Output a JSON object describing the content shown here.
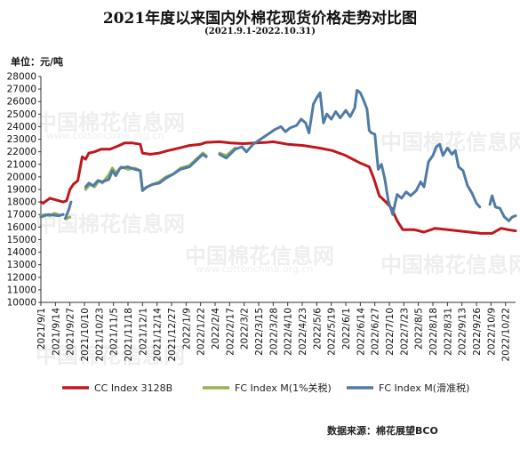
{
  "header": {
    "title": "2021年度以来国内外棉花现货价格走势对比图",
    "subtitle": "(2021.9.1-2022.10.31)",
    "unit": "单位：元/吨"
  },
  "footer": {
    "source": "数据来源：棉花展望BCO"
  },
  "watermark": {
    "text": "中国棉花信息网",
    "url": "www.cottonchina.org.cn"
  },
  "colors": {
    "cc": "#c0171c",
    "fc1": "#93b450",
    "fc2": "#4f7ba6"
  },
  "chart_data": {
    "type": "line",
    "title": "2021年度以来国内外棉花现货价格走势对比图",
    "subtitle": "(2021.9.1-2022.10.31)",
    "ylabel": "单位：元/吨",
    "ylim": [
      10000,
      28000
    ],
    "yticks": [
      "10000",
      "11000",
      "12000",
      "13000",
      "14000",
      "15000",
      "16000",
      "17000",
      "18000",
      "19000",
      "20000",
      "21000",
      "22000",
      "23000",
      "24000",
      "25000",
      "26000",
      "27000",
      "28000"
    ],
    "xlim": [
      "2021-09-01",
      "2022-10-31"
    ],
    "xticks": [
      "2021/9/1",
      "2021/9/14",
      "2021/9/27",
      "2021/10/10",
      "2021/10/23",
      "2021/11/5",
      "2021/11/18",
      "2021/12/1",
      "2021/12/14",
      "2021/12/27",
      "2022/1/9",
      "2022/1/22",
      "2022/2/4",
      "2022/2/17",
      "2022/3/2",
      "2022/3/15",
      "2022/3/28",
      "2022/4/10",
      "2022/4/23",
      "2022/5/6",
      "2022/5/19",
      "2022/6/1",
      "2022/6/14",
      "2022/6/27",
      "2022/7/10",
      "2022/7/23",
      "2022/8/5",
      "2022/8/18",
      "2022/8/31",
      "2022/9/13",
      "2022/9/26",
      "2022/10/9",
      "2022/10/22"
    ],
    "grid": false,
    "legend": "bottom",
    "series": [
      {
        "name": "CC Index 3128B",
        "color": "#c0171c",
        "points": [
          [
            "2021-09-01",
            18000
          ],
          [
            "2021-09-03",
            17900
          ],
          [
            "2021-09-06",
            18100
          ],
          [
            "2021-09-09",
            18300
          ],
          [
            "2021-09-13",
            18200
          ],
          [
            "2021-09-17",
            18100
          ],
          [
            "2021-09-21",
            18000
          ],
          [
            "2021-09-24",
            18100
          ],
          [
            "2021-09-27",
            19000
          ],
          [
            "2021-09-30",
            19400
          ],
          [
            "2021-10-04",
            19700
          ],
          [
            "2021-10-08",
            21600
          ],
          [
            "2021-10-11",
            21400
          ],
          [
            "2021-10-14",
            21900
          ],
          [
            "2021-10-19",
            22000
          ],
          [
            "2021-10-25",
            22200
          ],
          [
            "2021-11-02",
            22200
          ],
          [
            "2021-11-10",
            22500
          ],
          [
            "2021-11-15",
            22700
          ],
          [
            "2021-11-22",
            22700
          ],
          [
            "2021-11-29",
            22600
          ],
          [
            "2021-12-01",
            21900
          ],
          [
            "2021-12-08",
            21800
          ],
          [
            "2021-12-16",
            21900
          ],
          [
            "2021-12-24",
            22100
          ],
          [
            "2022-01-03",
            22300
          ],
          [
            "2022-01-12",
            22500
          ],
          [
            "2022-01-22",
            22600
          ],
          [
            "2022-01-27",
            22750
          ],
          [
            "2022-02-08",
            22800
          ],
          [
            "2022-02-18",
            22700
          ],
          [
            "2022-03-01",
            22650
          ],
          [
            "2022-03-12",
            22700
          ],
          [
            "2022-03-22",
            22750
          ],
          [
            "2022-03-28",
            22800
          ],
          [
            "2022-04-10",
            22600
          ],
          [
            "2022-04-24",
            22500
          ],
          [
            "2022-05-08",
            22300
          ],
          [
            "2022-05-20",
            22100
          ],
          [
            "2022-06-01",
            21700
          ],
          [
            "2022-06-14",
            21100
          ],
          [
            "2022-06-22",
            20800
          ],
          [
            "2022-06-26",
            19900
          ],
          [
            "2022-07-01",
            18500
          ],
          [
            "2022-07-07",
            18000
          ],
          [
            "2022-07-12",
            17500
          ],
          [
            "2022-07-17",
            16500
          ],
          [
            "2022-07-22",
            15800
          ],
          [
            "2022-08-01",
            15800
          ],
          [
            "2022-08-10",
            15600
          ],
          [
            "2022-08-20",
            15900
          ],
          [
            "2022-08-31",
            15800
          ],
          [
            "2022-09-10",
            15700
          ],
          [
            "2022-09-20",
            15600
          ],
          [
            "2022-09-30",
            15500
          ],
          [
            "2022-10-10",
            15500
          ],
          [
            "2022-10-14",
            15700
          ],
          [
            "2022-10-18",
            15900
          ],
          [
            "2022-10-24",
            15800
          ],
          [
            "2022-10-31",
            15700
          ]
        ]
      },
      {
        "name": "FC Index M(1%关税)",
        "color": "#93b450",
        "points": [
          [
            "2021-09-01",
            16900
          ],
          [
            "2021-09-05",
            17000
          ],
          [
            "2021-09-09",
            16900
          ],
          [
            "2021-09-13",
            17100
          ],
          [
            "2021-09-18",
            16950
          ],
          [
            "2021-09-21",
            17000
          ],
          null,
          [
            "2021-09-23",
            16650
          ],
          [
            "2021-09-27",
            16800
          ],
          null,
          [
            "2021-10-11",
            19000
          ],
          [
            "2021-10-15",
            19400
          ],
          [
            "2021-10-19",
            19200
          ],
          [
            "2021-10-23",
            19700
          ],
          [
            "2021-10-26",
            19500
          ],
          [
            "2021-11-01",
            20200
          ],
          [
            "2021-11-04",
            20700
          ],
          [
            "2021-11-07",
            20300
          ],
          [
            "2021-11-12",
            20800
          ],
          [
            "2021-11-18",
            20600
          ],
          [
            "2021-11-24",
            20700
          ],
          [
            "2021-11-29",
            20500
          ],
          [
            "2021-12-01",
            19000
          ],
          [
            "2021-12-05",
            19200
          ],
          [
            "2021-12-10",
            19400
          ],
          [
            "2021-12-16",
            19600
          ],
          [
            "2021-12-22",
            20000
          ],
          [
            "2021-12-28",
            20200
          ],
          [
            "2022-01-04",
            20700
          ],
          [
            "2022-01-12",
            20900
          ],
          [
            "2022-01-18",
            21400
          ],
          [
            "2022-01-24",
            21900
          ],
          [
            "2022-01-27",
            21700
          ],
          null,
          [
            "2022-02-08",
            21900
          ],
          [
            "2022-02-14",
            21700
          ],
          [
            "2022-02-22",
            22300
          ]
        ]
      },
      {
        "name": "FC Index M(滑准税)",
        "color": "#4f7ba6",
        "points": [
          [
            "2021-09-01",
            16800
          ],
          [
            "2021-09-04",
            16900
          ],
          [
            "2021-09-08",
            17000
          ],
          [
            "2021-09-12",
            16950
          ],
          [
            "2021-09-17",
            16900
          ],
          [
            "2021-09-21",
            17000
          ],
          null,
          [
            "2021-09-23",
            16700
          ],
          [
            "2021-09-26",
            17400
          ],
          [
            "2021-09-28",
            18000
          ],
          null,
          [
            "2021-10-11",
            19200
          ],
          [
            "2021-10-14",
            19500
          ],
          [
            "2021-10-18",
            19300
          ],
          [
            "2021-10-22",
            19700
          ],
          [
            "2021-10-26",
            19600
          ],
          [
            "2021-11-01",
            19800
          ],
          [
            "2021-11-04",
            20500
          ],
          [
            "2021-11-07",
            20100
          ],
          [
            "2021-11-11",
            20700
          ],
          [
            "2021-11-18",
            20800
          ],
          [
            "2021-11-24",
            20600
          ],
          [
            "2021-11-29",
            20500
          ],
          [
            "2021-12-01",
            18900
          ],
          [
            "2021-12-05",
            19200
          ],
          [
            "2021-12-10",
            19400
          ],
          [
            "2021-12-16",
            19500
          ],
          [
            "2021-12-22",
            19900
          ],
          [
            "2021-12-28",
            20200
          ],
          [
            "2022-01-04",
            20600
          ],
          [
            "2022-01-12",
            20800
          ],
          [
            "2022-01-18",
            21300
          ],
          [
            "2022-01-24",
            21800
          ],
          [
            "2022-01-27",
            21600
          ],
          null,
          [
            "2022-02-08",
            21800
          ],
          [
            "2022-02-14",
            21500
          ],
          [
            "2022-02-22",
            22200
          ],
          [
            "2022-02-28",
            22400
          ],
          [
            "2022-03-04",
            22000
          ],
          [
            "2022-03-10",
            22600
          ],
          [
            "2022-03-15",
            22900
          ],
          [
            "2022-03-20",
            23200
          ],
          [
            "2022-03-25",
            23500
          ],
          [
            "2022-03-30",
            23800
          ],
          [
            "2022-04-04",
            24000
          ],
          [
            "2022-04-08",
            23600
          ],
          [
            "2022-04-12",
            23900
          ],
          [
            "2022-04-18",
            24100
          ],
          [
            "2022-04-22",
            24600
          ],
          [
            "2022-04-26",
            24300
          ],
          [
            "2022-04-29",
            23500
          ],
          [
            "2022-05-03",
            25800
          ],
          [
            "2022-05-06",
            26300
          ],
          [
            "2022-05-09",
            26700
          ],
          [
            "2022-05-12",
            24300
          ],
          [
            "2022-05-15",
            25000
          ],
          [
            "2022-05-19",
            24600
          ],
          [
            "2022-05-23",
            25200
          ],
          [
            "2022-05-27",
            24700
          ],
          [
            "2022-06-01",
            25300
          ],
          [
            "2022-06-05",
            24800
          ],
          [
            "2022-06-09",
            25500
          ],
          [
            "2022-06-11",
            26900
          ],
          [
            "2022-06-14",
            26700
          ],
          [
            "2022-06-17",
            26100
          ],
          [
            "2022-06-20",
            25400
          ],
          [
            "2022-06-22",
            23700
          ],
          [
            "2022-06-24",
            23500
          ],
          [
            "2022-06-27",
            23400
          ],
          [
            "2022-06-30",
            20600
          ],
          [
            "2022-07-03",
            21000
          ],
          [
            "2022-07-06",
            19800
          ],
          [
            "2022-07-09",
            18100
          ],
          [
            "2022-07-13",
            17000
          ],
          [
            "2022-07-17",
            18600
          ],
          [
            "2022-07-21",
            18300
          ],
          [
            "2022-07-25",
            18800
          ],
          [
            "2022-07-29",
            18500
          ],
          [
            "2022-08-03",
            18900
          ],
          [
            "2022-08-07",
            19600
          ],
          [
            "2022-08-10",
            19200
          ],
          [
            "2022-08-14",
            21200
          ],
          [
            "2022-08-18",
            21700
          ],
          [
            "2022-08-21",
            22400
          ],
          [
            "2022-08-24",
            22600
          ],
          [
            "2022-08-27",
            21700
          ],
          [
            "2022-08-31",
            22300
          ],
          [
            "2022-09-04",
            21800
          ],
          [
            "2022-09-07",
            22100
          ],
          [
            "2022-09-10",
            20800
          ],
          [
            "2022-09-14",
            20500
          ],
          [
            "2022-09-18",
            19300
          ],
          [
            "2022-09-22",
            18700
          ],
          [
            "2022-09-26",
            17900
          ],
          [
            "2022-09-29",
            17600
          ],
          null,
          [
            "2022-10-08",
            17800
          ],
          [
            "2022-10-10",
            18500
          ],
          [
            "2022-10-13",
            17600
          ],
          [
            "2022-10-17",
            17500
          ],
          [
            "2022-10-21",
            16800
          ],
          [
            "2022-10-25",
            16500
          ],
          [
            "2022-10-28",
            16800
          ],
          [
            "2022-10-31",
            16900
          ]
        ]
      }
    ]
  }
}
